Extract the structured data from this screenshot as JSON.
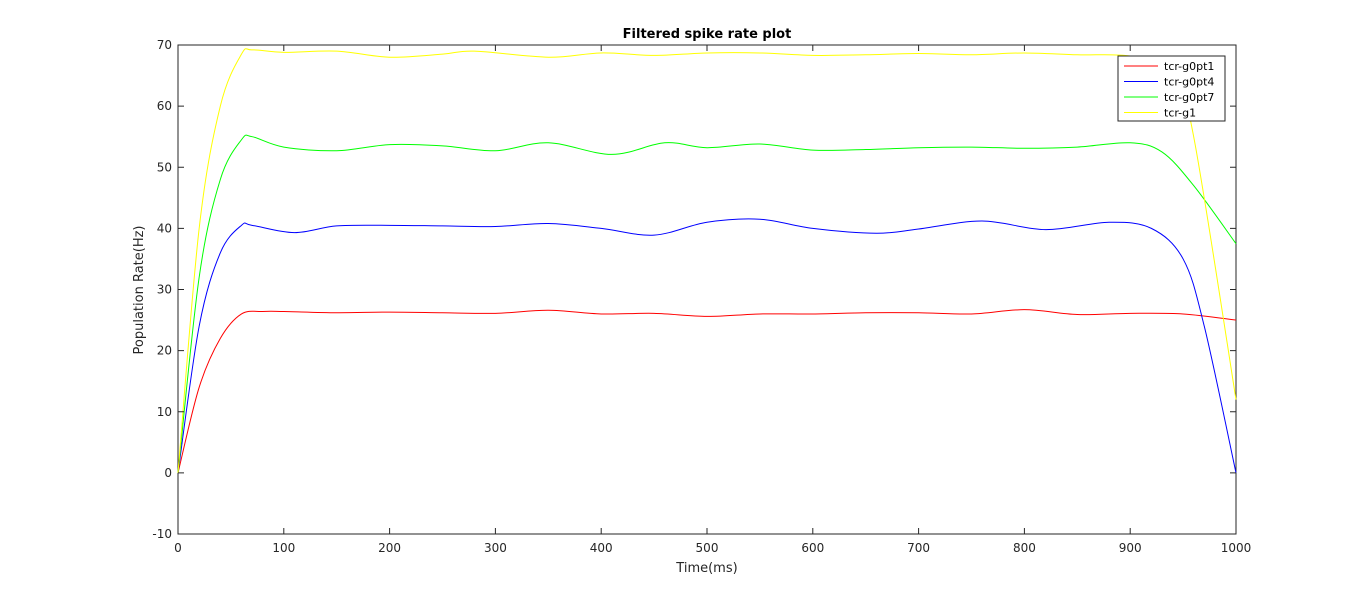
{
  "chart_data": {
    "type": "line",
    "title": "Filtered spike rate plot",
    "xlabel": "Time(ms)",
    "ylabel": "Population Rate(Hz)",
    "xlim": [
      0,
      1000
    ],
    "ylim": [
      -10,
      70
    ],
    "xticks": [
      0,
      100,
      200,
      300,
      400,
      500,
      600,
      700,
      800,
      900,
      1000
    ],
    "yticks": [
      -10,
      0,
      10,
      20,
      30,
      40,
      50,
      60,
      70
    ],
    "grid": false,
    "legend_position": "top-right",
    "series": [
      {
        "name": "tcr-g0pt1",
        "color": "#ff0000",
        "x": [
          0,
          20,
          40,
          60,
          80,
          100,
          150,
          200,
          250,
          300,
          350,
          400,
          450,
          500,
          550,
          600,
          650,
          700,
          750,
          800,
          850,
          900,
          950,
          1000
        ],
        "y": [
          0,
          14,
          22,
          26,
          26.4,
          26.4,
          26.2,
          26.3,
          26.2,
          26.1,
          26.6,
          26.0,
          26.1,
          25.6,
          26.0,
          26.0,
          26.2,
          26.2,
          26.0,
          26.7,
          25.9,
          26.1,
          26.0,
          25.0
        ]
      },
      {
        "name": "tcr-g0pt4",
        "color": "#0000ff",
        "x": [
          0,
          20,
          40,
          60,
          70,
          110,
          150,
          200,
          250,
          300,
          350,
          400,
          450,
          500,
          550,
          600,
          660,
          700,
          760,
          820,
          880,
          920,
          950,
          970,
          1000
        ],
        "y": [
          0,
          24,
          36,
          40.5,
          40.5,
          39.3,
          40.4,
          40.5,
          40.4,
          40.3,
          40.8,
          40.0,
          38.9,
          41.0,
          41.5,
          40.0,
          39.2,
          39.9,
          41.2,
          39.8,
          41.0,
          40.0,
          35.0,
          24.0,
          0
        ]
      },
      {
        "name": "tcr-g0pt7",
        "color": "#00ff00",
        "x": [
          0,
          20,
          40,
          60,
          70,
          100,
          150,
          200,
          250,
          300,
          350,
          410,
          460,
          500,
          550,
          600,
          650,
          700,
          750,
          800,
          850,
          900,
          930,
          960,
          1000
        ],
        "y": [
          0,
          32,
          48,
          54.5,
          55,
          53.3,
          52.7,
          53.7,
          53.5,
          52.7,
          54.0,
          52.1,
          54.0,
          53.2,
          53.8,
          52.8,
          52.9,
          53.2,
          53.3,
          53.1,
          53.3,
          54.0,
          52.5,
          47.0,
          37.5
        ]
      },
      {
        "name": "tcr-g1",
        "color": "#ffff00",
        "x": [
          0,
          20,
          40,
          60,
          70,
          100,
          150,
          200,
          250,
          280,
          350,
          400,
          450,
          500,
          550,
          600,
          650,
          700,
          750,
          800,
          850,
          900,
          940,
          960,
          1000
        ],
        "y": [
          0,
          40,
          60,
          68.5,
          69.2,
          68.8,
          69.0,
          68.0,
          68.5,
          69.0,
          68.0,
          68.7,
          68.3,
          68.7,
          68.7,
          68.3,
          68.4,
          68.6,
          68.4,
          68.7,
          68.4,
          68.2,
          66.0,
          55.0,
          12.0
        ]
      }
    ]
  }
}
